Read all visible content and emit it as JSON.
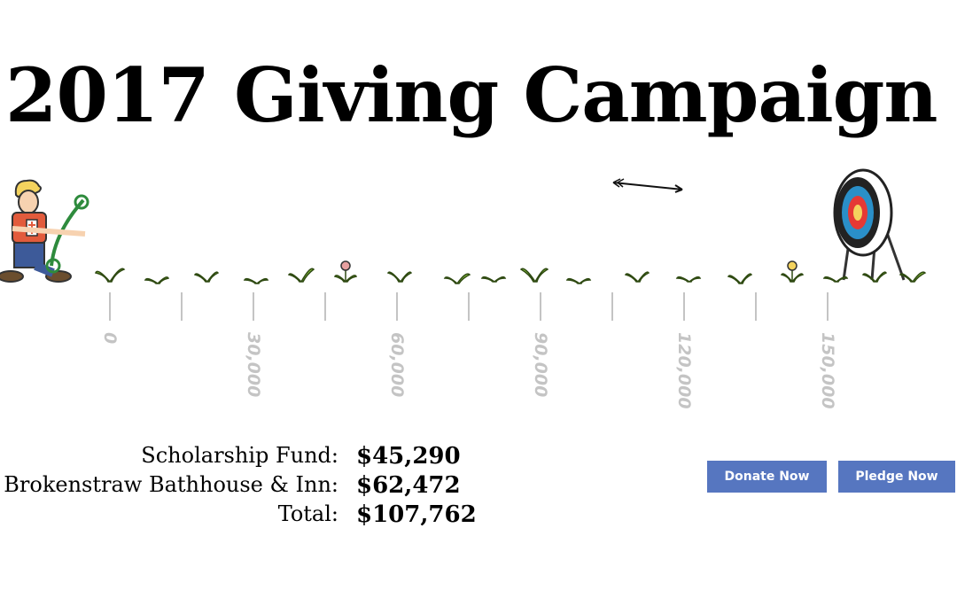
{
  "page": {
    "title": "2017 Giving Campaign"
  },
  "scale": {
    "ticks": [
      "0",
      "30,000",
      "60,000",
      "90,000",
      "120,000",
      "150,000"
    ]
  },
  "totals": {
    "scholarship_label": "Scholarship Fund:",
    "scholarship_value": "$45,290",
    "bathhouse_label": "Brokenstraw Bathhouse & Inn:",
    "bathhouse_value": "$62,472",
    "total_label": "Total:",
    "total_value": "$107,762"
  },
  "actions": {
    "donate_label": "Donate Now",
    "pledge_label": "Pledge Now"
  },
  "colors": {
    "button": "#5676c0",
    "tick": "#c4c4c4",
    "sprout": "#8cc63f",
    "target_red": "#e53935",
    "target_blue": "#2a8fc8"
  }
}
